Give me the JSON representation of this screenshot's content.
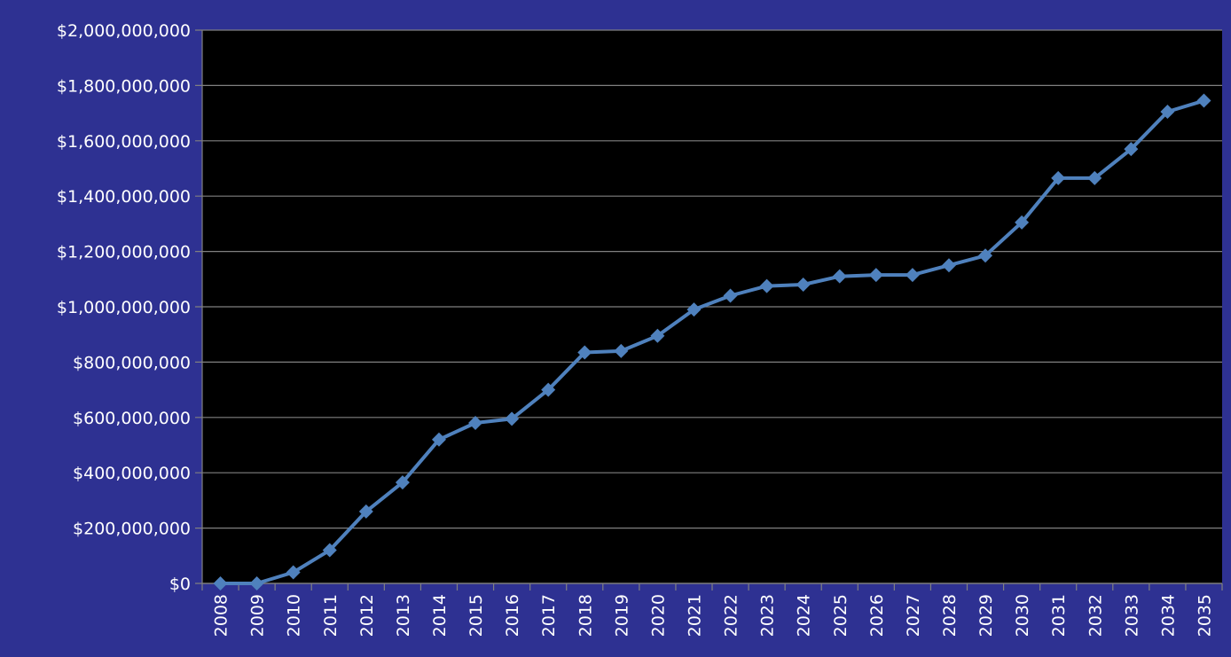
{
  "colors": {
    "background": "#2E3192",
    "plot_area": "#000000",
    "gridline": "#808080",
    "series_line": "#4F81BD",
    "text": "#FFFFFF"
  },
  "chart_data": {
    "type": "line",
    "title": "",
    "xlabel": "",
    "ylabel": "",
    "ylim": [
      0,
      2000000000
    ],
    "y_ticks": [
      0,
      200000000,
      400000000,
      600000000,
      800000000,
      1000000000,
      1200000000,
      1400000000,
      1600000000,
      1800000000,
      2000000000
    ],
    "y_tick_labels": [
      "$0",
      "$200,000,000",
      "$400,000,000",
      "$600,000,000",
      "$800,000,000",
      "$1,000,000,000",
      "$1,200,000,000",
      "$1,400,000,000",
      "$1,600,000,000",
      "$1,800,000,000",
      "$2,000,000,000"
    ],
    "grid": true,
    "legend": "none",
    "marker": "diamond",
    "categories": [
      "2008",
      "2009",
      "2010",
      "2011",
      "2012",
      "2013",
      "2014",
      "2015",
      "2016",
      "2017",
      "2018",
      "2019",
      "2020",
      "2021",
      "2022",
      "2023",
      "2024",
      "2025",
      "2026",
      "2027",
      "2028",
      "2029",
      "2030",
      "2031",
      "2032",
      "2033",
      "2034",
      "2035"
    ],
    "series": [
      {
        "values": [
          0,
          0,
          40000000,
          120000000,
          260000000,
          365000000,
          520000000,
          580000000,
          595000000,
          700000000,
          835000000,
          840000000,
          895000000,
          990000000,
          1040000000,
          1075000000,
          1080000000,
          1110000000,
          1115000000,
          1115000000,
          1150000000,
          1185000000,
          1305000000,
          1465000000,
          1465000000,
          1570000000,
          1705000000,
          1745000000
        ]
      }
    ]
  }
}
